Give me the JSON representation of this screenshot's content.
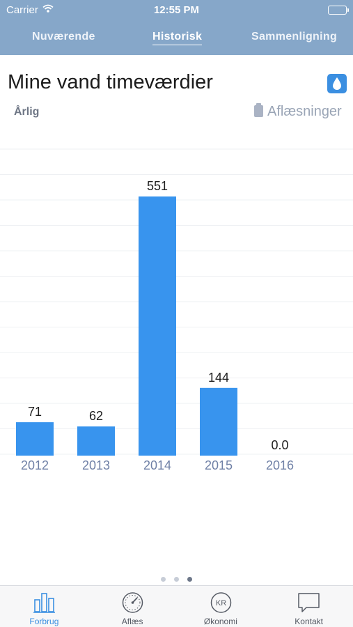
{
  "status_bar": {
    "carrier": "Carrier",
    "time": "12:55 PM"
  },
  "tabs": [
    "Nuværende",
    "Historisk",
    "Sammenligning"
  ],
  "active_tab": "Historisk",
  "page": {
    "title": "Mine vand timeværdier",
    "period": "Årlig",
    "readings_label": "Aflæsninger",
    "water_icon": "water-drop-icon"
  },
  "chart_data": {
    "type": "bar",
    "categories": [
      "2012",
      "2013",
      "2014",
      "2015",
      "2016"
    ],
    "values": [
      71,
      62,
      551,
      144,
      0.0
    ],
    "value_labels": [
      "71",
      "62",
      "551",
      "144",
      "0.0"
    ],
    "ylim": [
      0,
      600
    ],
    "grid": true,
    "bar_color": "#3894ee"
  },
  "pager": {
    "pages": 3,
    "active": 3
  },
  "tabbar": {
    "items": [
      {
        "label": "Forbrug",
        "icon": "bar-chart-icon"
      },
      {
        "label": "Aflæs",
        "icon": "gauge-icon"
      },
      {
        "label": "Økonomi",
        "icon": "kr-coin-icon"
      },
      {
        "label": "Kontakt",
        "icon": "chat-bubble-icon"
      }
    ],
    "active": "Forbrug"
  },
  "colors": {
    "header": "#86a7c9",
    "accent": "#3a8fe1"
  }
}
